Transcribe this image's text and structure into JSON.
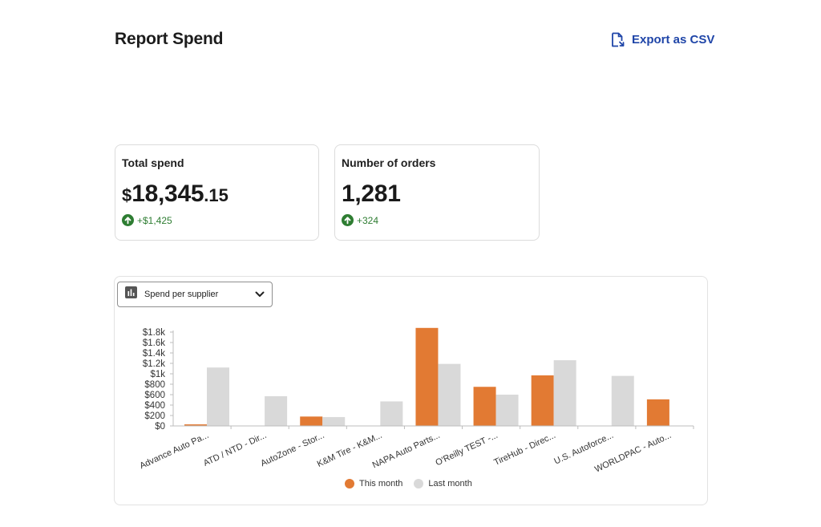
{
  "header": {
    "title": "Report Spend",
    "export_label": "Export as CSV",
    "export_icon": "file-export-icon"
  },
  "cards": {
    "total_spend": {
      "title": "Total spend",
      "currency": "$",
      "value_main": "18,345",
      "value_decimal": ".15",
      "delta": "+$1,425",
      "delta_icon": "arrow-up-circle-icon",
      "delta_color": "#2e7d32"
    },
    "orders": {
      "title": "Number of orders",
      "value": "1,281",
      "delta": "+324",
      "delta_icon": "arrow-up-circle-icon",
      "delta_color": "#2e7d32"
    }
  },
  "chart_select": {
    "icon": "bar-chart-icon",
    "label": "Spend per supplier",
    "chevron": "chevron-down-icon"
  },
  "chart_data": {
    "type": "bar",
    "categories": [
      "Advance Auto Pa...",
      "ATD / NTD - Dir...",
      "AutoZone - Stor...",
      "K&M Tire - K&M...",
      "NAPA Auto Parts...",
      "O'Reilly TEST -...",
      "TireHub - Direc...",
      "U.S. Autoforce...",
      "WORLDPAC - Auto..."
    ],
    "series": [
      {
        "name": "This month",
        "color": "#e27a33",
        "values": [
          30,
          0,
          180,
          0,
          1880,
          750,
          970,
          0,
          510
        ]
      },
      {
        "name": "Last month",
        "color": "#d9d9d9",
        "values": [
          1120,
          570,
          170,
          470,
          1190,
          600,
          1260,
          960,
          0
        ]
      }
    ],
    "yticks": [
      "$0",
      "$200",
      "$400",
      "$600",
      "$800",
      "$1k",
      "$1.2k",
      "$1.4k",
      "$1.6k",
      "$1.8k"
    ],
    "ylim": [
      0,
      1800
    ],
    "legend": "bottom",
    "grid": false
  }
}
